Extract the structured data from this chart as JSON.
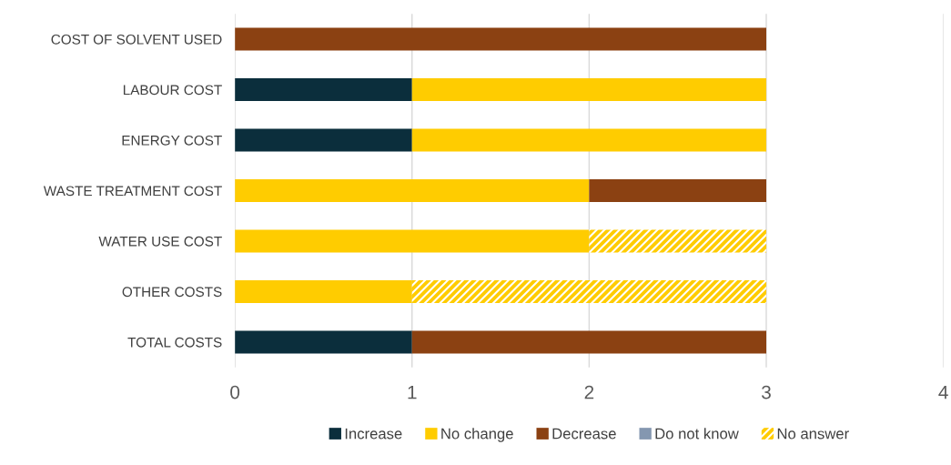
{
  "chart_data": {
    "type": "bar",
    "orientation": "horizontal",
    "stacked": true,
    "categories": [
      "COST OF SOLVENT USED",
      "LABOUR COST",
      "ENERGY COST",
      "WASTE TREATMENT COST",
      "WATER USE COST",
      "OTHER COSTS",
      "TOTAL COSTS"
    ],
    "series": [
      {
        "name": "Increase",
        "color": "#0b2e3c",
        "values": [
          0,
          1,
          1,
          0,
          0,
          0,
          1
        ]
      },
      {
        "name": "No change",
        "color": "#ffcc00",
        "values": [
          0,
          2,
          2,
          2,
          2,
          1,
          0
        ]
      },
      {
        "name": "Decrease",
        "color": "#8b4112",
        "values": [
          3,
          0,
          0,
          1,
          0,
          0,
          2
        ]
      },
      {
        "name": "Do not know",
        "color": "#8497b0",
        "values": [
          0,
          0,
          0,
          0,
          0,
          0,
          0
        ]
      },
      {
        "name": "No answer",
        "color": "#ffcc00",
        "values": [
          0,
          0,
          0,
          0,
          1,
          2,
          0
        ]
      }
    ],
    "xlim": [
      0,
      4
    ],
    "xticks": [
      0,
      1,
      2,
      3,
      4
    ],
    "grid": "x",
    "legend": "bottom"
  }
}
